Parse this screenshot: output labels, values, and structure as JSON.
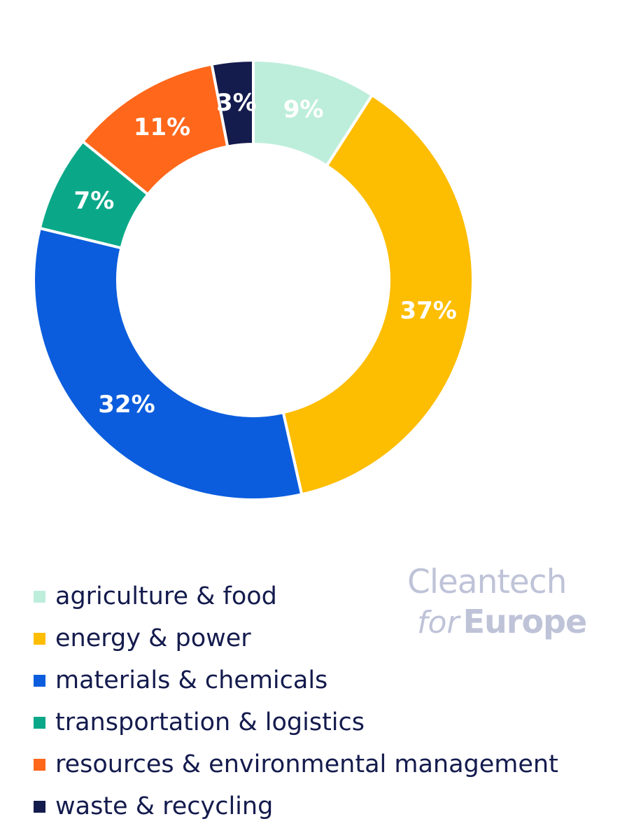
{
  "chart_data": {
    "type": "pie",
    "donut": true,
    "categories": [
      "agriculture & food",
      "energy & power",
      "materials & chemicals",
      "transportation & logistics",
      "resources & environmental management",
      "waste & recycling"
    ],
    "values": [
      9,
      37,
      32,
      7,
      11,
      3
    ],
    "labels": [
      "9%",
      "37%",
      "32%",
      "7%",
      "11%",
      "3%"
    ],
    "colors": [
      "#bdeedb",
      "#fdbd00",
      "#0b5ddd",
      "#0aa888",
      "#ff671b",
      "#141b4d"
    ],
    "legend_position": "bottom-left"
  },
  "legend": {
    "items": [
      {
        "label": "agriculture & food",
        "color": "#bdeedb"
      },
      {
        "label": "energy & power",
        "color": "#fdbd00"
      },
      {
        "label": "materials & chemicals",
        "color": "#0b5ddd"
      },
      {
        "label": "transportation & logistics",
        "color": "#0aa888"
      },
      {
        "label": "resources & environmental management",
        "color": "#ff671b"
      },
      {
        "label": "waste & recycling",
        "color": "#141b4d"
      }
    ]
  },
  "logo": {
    "line1": "Cleantech",
    "for": "for",
    "europe": "Europe",
    "color": "#bfc3d8"
  }
}
